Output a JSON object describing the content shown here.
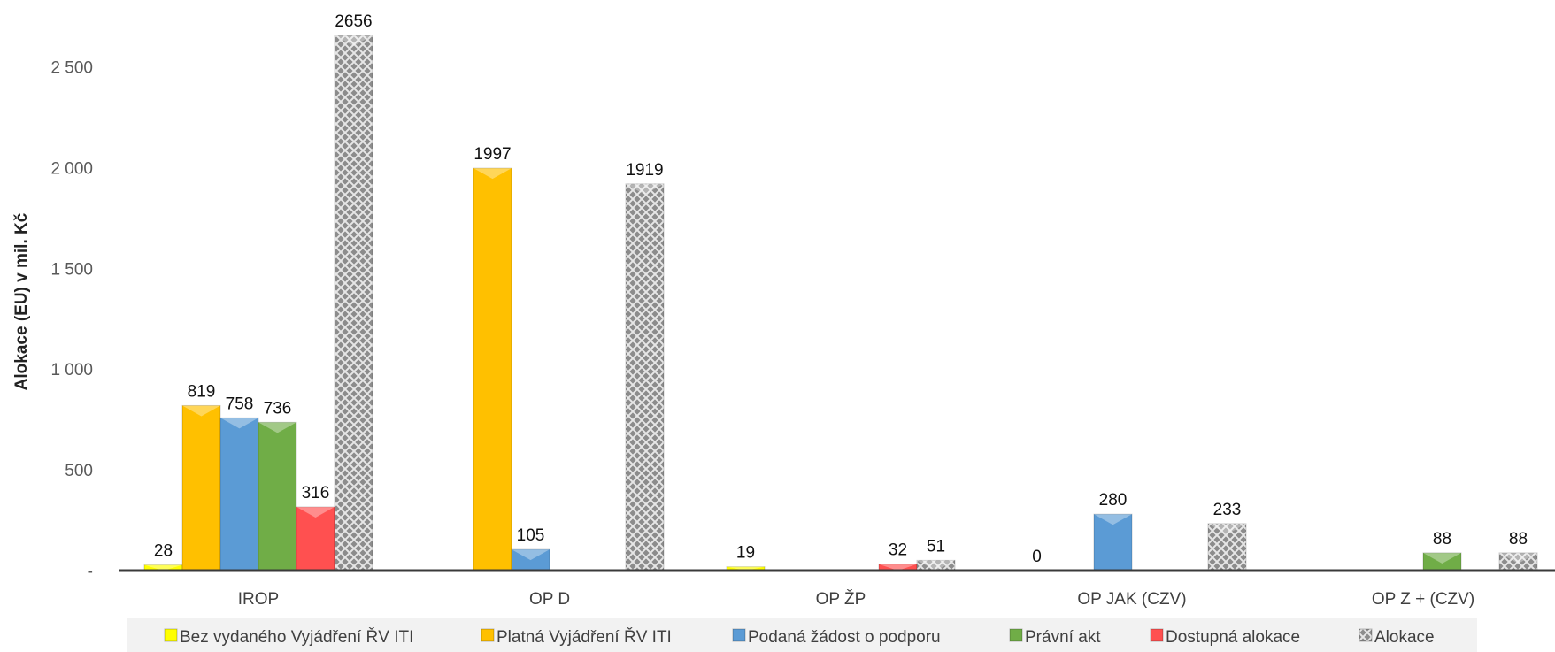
{
  "chart_data": {
    "type": "bar",
    "title": "",
    "xlabel": "",
    "ylabel": "Alokace (EU) v mil. Kč",
    "ylim": [
      0,
      2800
    ],
    "yticks": [
      0,
      500,
      1000,
      1500,
      2000,
      2500
    ],
    "ytick_labels": [
      "-",
      "500",
      "1 000",
      "1 500",
      "2 000",
      "2 500"
    ],
    "categories": [
      "IROP",
      "OP D",
      "OP ŽP",
      "OP JAK (CZV)",
      "OP Z + (CZV)"
    ],
    "grid": false,
    "legend_position": "bottom",
    "series": [
      {
        "name": "Bez vydaného Vyjádření ŘV ITI",
        "color": "#ffff00",
        "pattern": "solid",
        "values": [
          28,
          null,
          19,
          0,
          null
        ]
      },
      {
        "name": "Platná Vyjádření ŘV ITI",
        "color": "#ffc000",
        "pattern": "solid",
        "values": [
          819,
          1997,
          null,
          null,
          null
        ]
      },
      {
        "name": "Podaná žádost o podporu",
        "color": "#5b9bd5",
        "pattern": "solid",
        "values": [
          758,
          105,
          null,
          280,
          null
        ]
      },
      {
        "name": "Právní akt",
        "color": "#70ad47",
        "pattern": "solid",
        "values": [
          736,
          null,
          null,
          null,
          88
        ]
      },
      {
        "name": "Dostupná alokace",
        "color": "#ff5050",
        "pattern": "solid",
        "values": [
          316,
          null,
          32,
          null,
          null
        ]
      },
      {
        "name": "Alokace",
        "color": "#9a9a9a",
        "pattern": "crosshatch",
        "values": [
          2656,
          1919,
          51,
          233,
          88
        ]
      }
    ]
  }
}
